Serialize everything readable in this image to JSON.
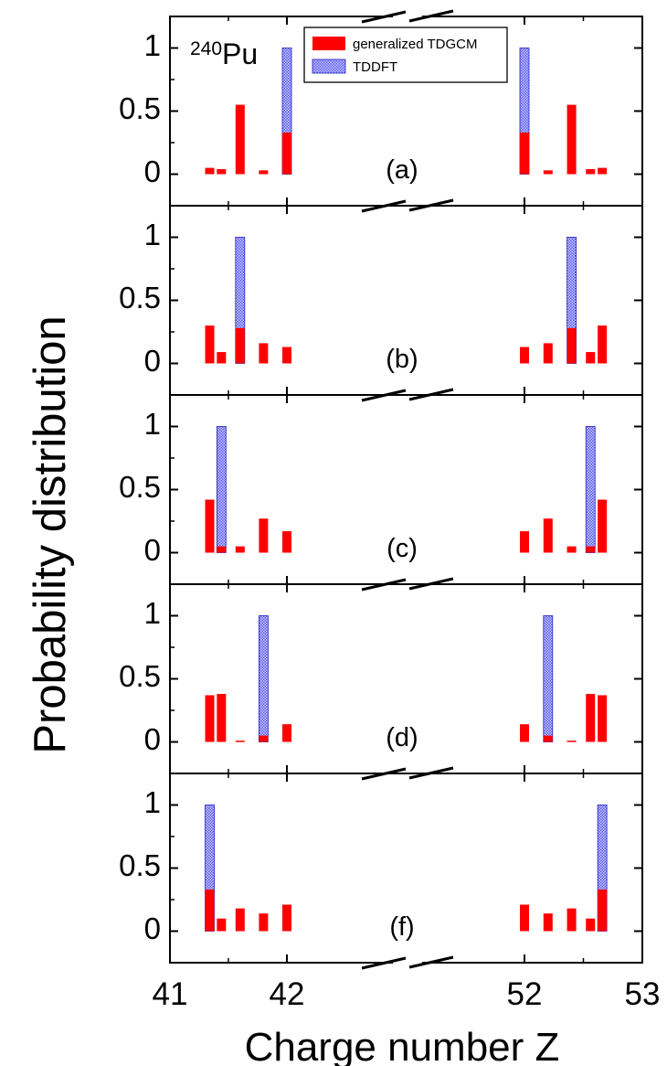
{
  "figure": {
    "ylabel": "Probability distribution",
    "xlabel": "Charge number Z",
    "nucleus_mass": "240",
    "nucleus_symbol": "Pu",
    "legend": {
      "items": [
        {
          "label": "generalized TDGCM",
          "color": "#ff0000"
        },
        {
          "label": "TDDFT",
          "color": "#6a6aee"
        }
      ]
    },
    "x_ticks": [
      "41",
      "42",
      "52",
      "53"
    ],
    "y_ticks": [
      "0",
      "0.5",
      "1"
    ]
  },
  "chart_data": [
    {
      "type": "bar",
      "panel": "(a)",
      "x_axis_broken": true,
      "x_segments": [
        [
          41,
          42
        ],
        [
          52,
          53
        ]
      ],
      "ylim": [
        -0.25,
        1.25
      ],
      "series": [
        {
          "name": "generalized TDGCM",
          "x": [
            41.34,
            41.44,
            41.6,
            41.8,
            42.0,
            52.0,
            52.2,
            52.4,
            52.56,
            52.66
          ],
          "values": [
            0.05,
            0.04,
            0.55,
            0.03,
            0.33,
            0.33,
            0.03,
            0.55,
            0.04,
            0.05
          ]
        },
        {
          "name": "TDDFT",
          "x": [
            42.0,
            52.0
          ],
          "values": [
            1.0,
            1.0
          ]
        }
      ]
    },
    {
      "type": "bar",
      "panel": "(b)",
      "x_axis_broken": true,
      "x_segments": [
        [
          41,
          42
        ],
        [
          52,
          53
        ]
      ],
      "ylim": [
        -0.25,
        1.25
      ],
      "series": [
        {
          "name": "generalized TDGCM",
          "x": [
            41.34,
            41.44,
            41.6,
            41.8,
            42.0,
            52.0,
            52.2,
            52.4,
            52.56,
            52.66
          ],
          "values": [
            0.3,
            0.09,
            0.28,
            0.16,
            0.13,
            0.13,
            0.16,
            0.28,
            0.09,
            0.3
          ]
        },
        {
          "name": "TDDFT",
          "x": [
            41.6,
            52.4
          ],
          "values": [
            1.0,
            1.0
          ]
        }
      ]
    },
    {
      "type": "bar",
      "panel": "(c)",
      "x_axis_broken": true,
      "x_segments": [
        [
          41,
          42
        ],
        [
          52,
          53
        ]
      ],
      "ylim": [
        -0.25,
        1.25
      ],
      "series": [
        {
          "name": "generalized TDGCM",
          "x": [
            41.34,
            41.44,
            41.6,
            41.8,
            42.0,
            52.0,
            52.2,
            52.4,
            52.56,
            52.66
          ],
          "values": [
            0.42,
            0.05,
            0.05,
            0.27,
            0.17,
            0.17,
            0.27,
            0.05,
            0.05,
            0.42
          ]
        },
        {
          "name": "TDDFT",
          "x": [
            41.44,
            52.56
          ],
          "values": [
            1.0,
            1.0
          ]
        }
      ]
    },
    {
      "type": "bar",
      "panel": "(d)",
      "x_axis_broken": true,
      "x_segments": [
        [
          41,
          42
        ],
        [
          52,
          53
        ]
      ],
      "ylim": [
        -0.25,
        1.25
      ],
      "series": [
        {
          "name": "generalized TDGCM",
          "x": [
            41.34,
            41.44,
            41.6,
            41.8,
            42.0,
            52.0,
            52.2,
            52.4,
            52.56,
            52.66
          ],
          "values": [
            0.37,
            0.38,
            0.01,
            0.05,
            0.14,
            0.14,
            0.05,
            0.01,
            0.38,
            0.37
          ]
        },
        {
          "name": "TDDFT",
          "x": [
            41.8,
            52.2
          ],
          "values": [
            1.0,
            1.0
          ]
        }
      ]
    },
    {
      "type": "bar",
      "panel": "(f)",
      "x_axis_broken": true,
      "x_segments": [
        [
          41,
          42
        ],
        [
          52,
          53
        ]
      ],
      "ylim": [
        -0.25,
        1.25
      ],
      "series": [
        {
          "name": "generalized TDGCM",
          "x": [
            41.34,
            41.44,
            41.6,
            41.8,
            42.0,
            52.0,
            52.2,
            52.4,
            52.56,
            52.66
          ],
          "values": [
            0.33,
            0.1,
            0.18,
            0.14,
            0.21,
            0.21,
            0.14,
            0.18,
            0.1,
            0.33
          ]
        },
        {
          "name": "TDDFT",
          "x": [
            41.34,
            52.66
          ],
          "values": [
            1.0,
            1.0
          ]
        }
      ]
    }
  ]
}
